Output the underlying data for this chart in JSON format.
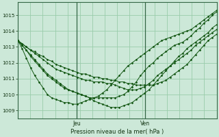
{
  "title": "Pression niveau de la mer( hPa )",
  "background_color": "#cce8d8",
  "grid_color": "#99ccaa",
  "line_color": "#115511",
  "marker_color": "#115511",
  "ylim": [
    1008.5,
    1015.8
  ],
  "yticks": [
    1009,
    1010,
    1011,
    1012,
    1013,
    1014,
    1015
  ],
  "day_lines": [
    0.295,
    0.64
  ],
  "x_day_labels": [
    [
      "Jeu",
      0.295
    ],
    [
      "Ven",
      0.64
    ]
  ],
  "n_points": 48,
  "series": [
    [
      1013.4,
      1013.1,
      1012.8,
      1012.4,
      1012.1,
      1011.8,
      1011.5,
      1011.2,
      1011.0,
      1010.8,
      1010.6,
      1010.4,
      1010.3,
      1010.2,
      1010.1,
      1010.0,
      1009.9,
      1009.8,
      1009.8,
      1009.8,
      1009.8,
      1009.8,
      1009.8,
      1009.8,
      1009.9,
      1010.0,
      1010.2,
      1010.5,
      1010.8,
      1011.2,
      1011.5,
      1011.8,
      1012.0,
      1012.3,
      1012.5,
      1012.7,
      1012.9,
      1013.1,
      1013.2,
      1013.3,
      1013.5,
      1013.7,
      1014.0,
      1014.2,
      1014.5,
      1014.7,
      1015.0,
      1015.2
    ],
    [
      1013.4,
      1013.2,
      1013.0,
      1012.8,
      1012.6,
      1012.4,
      1012.2,
      1012.0,
      1011.8,
      1011.6,
      1011.5,
      1011.4,
      1011.3,
      1011.2,
      1011.1,
      1011.0,
      1010.9,
      1010.9,
      1010.8,
      1010.8,
      1010.8,
      1010.7,
      1010.7,
      1010.6,
      1010.5,
      1010.4,
      1010.3,
      1010.3,
      1010.3,
      1010.4,
      1010.5,
      1010.7,
      1010.9,
      1011.2,
      1011.4,
      1011.6,
      1011.8,
      1012.0,
      1012.2,
      1012.4,
      1012.6,
      1012.8,
      1013.1,
      1013.3,
      1013.5,
      1013.7,
      1013.9,
      1014.1
    ],
    [
      1013.4,
      1013.2,
      1013.0,
      1012.8,
      1012.7,
      1012.5,
      1012.4,
      1012.2,
      1012.1,
      1011.9,
      1011.8,
      1011.7,
      1011.6,
      1011.5,
      1011.4,
      1011.3,
      1011.3,
      1011.2,
      1011.1,
      1011.1,
      1011.0,
      1011.0,
      1010.9,
      1010.9,
      1010.8,
      1010.8,
      1010.7,
      1010.7,
      1010.6,
      1010.6,
      1010.6,
      1010.6,
      1010.6,
      1010.7,
      1010.8,
      1010.9,
      1011.1,
      1011.3,
      1011.5,
      1011.7,
      1011.9,
      1012.2,
      1012.5,
      1012.8,
      1013.1,
      1013.4,
      1013.6,
      1013.8
    ],
    [
      1013.4,
      1013.1,
      1012.8,
      1012.5,
      1012.2,
      1011.9,
      1011.6,
      1011.3,
      1011.1,
      1010.9,
      1010.7,
      1010.5,
      1010.3,
      1010.2,
      1010.1,
      1010.0,
      1009.9,
      1009.8,
      1009.6,
      1009.5,
      1009.4,
      1009.3,
      1009.2,
      1009.2,
      1009.2,
      1009.3,
      1009.4,
      1009.5,
      1009.7,
      1009.9,
      1010.1,
      1010.3,
      1010.6,
      1010.9,
      1011.2,
      1011.5,
      1011.8,
      1012.1,
      1012.4,
      1012.6,
      1012.9,
      1013.1,
      1013.3,
      1013.5,
      1013.7,
      1013.9,
      1014.2,
      1014.4
    ],
    [
      1013.4,
      1012.9,
      1012.3,
      1011.7,
      1011.2,
      1010.8,
      1010.4,
      1010.0,
      1009.8,
      1009.7,
      1009.6,
      1009.5,
      1009.5,
      1009.4,
      1009.4,
      1009.5,
      1009.6,
      1009.7,
      1009.8,
      1009.9,
      1010.1,
      1010.3,
      1010.6,
      1010.9,
      1011.2,
      1011.5,
      1011.8,
      1012.0,
      1012.2,
      1012.4,
      1012.6,
      1012.8,
      1013.0,
      1013.2,
      1013.4,
      1013.5,
      1013.6,
      1013.7,
      1013.8,
      1013.9,
      1014.0,
      1014.1,
      1014.3,
      1014.5,
      1014.7,
      1014.9,
      1015.1,
      1015.3
    ]
  ]
}
